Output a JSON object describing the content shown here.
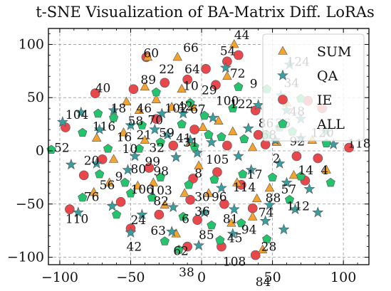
{
  "chart_data": {
    "type": "scatter",
    "title": "t-SNE Visualization of BA-Matrix Diff. LoRAs",
    "xlabel": "",
    "ylabel": "",
    "xlim": [
      -108,
      118
    ],
    "ylim": [
      -107,
      115
    ],
    "xticks": [
      -100,
      -50,
      0,
      50,
      100
    ],
    "yticks": [
      -100,
      -50,
      0,
      50,
      100
    ],
    "grid": true,
    "legend_position": "top-right",
    "series": [
      {
        "name": "SUM",
        "marker": "triangle",
        "color": "#f4a32c",
        "points": [
          [
            23,
            100
          ],
          [
            -38,
            88
          ],
          [
            -17,
            88
          ],
          [
            -40,
            60
          ],
          [
            -53,
            46
          ],
          [
            -32,
            48
          ],
          [
            -44,
            38
          ],
          [
            -14,
            58
          ],
          [
            -21,
            41
          ],
          [
            -6,
            41
          ],
          [
            18,
            70
          ],
          [
            1,
            22
          ],
          [
            -8,
            8
          ],
          [
            -40,
            10
          ],
          [
            -62,
            -8
          ],
          [
            -55,
            17
          ],
          [
            -74,
            12
          ],
          [
            -34,
            -30
          ],
          [
            -65,
            -30
          ],
          [
            -76,
            -39
          ],
          [
            -45,
            -33
          ],
          [
            -26,
            -51
          ],
          [
            21,
            -68
          ],
          [
            36,
            -62
          ],
          [
            43,
            -93
          ],
          [
            22,
            18
          ],
          [
            36,
            3
          ],
          [
            53,
            8
          ],
          [
            48,
            -35
          ],
          [
            39,
            -45
          ],
          [
            5,
            -40
          ],
          [
            -18,
            -78
          ],
          [
            65,
            -23
          ],
          [
            78,
            10
          ],
          [
            88,
            -18
          ],
          [
            12,
            28
          ],
          [
            -2,
            -14
          ],
          [
            25,
            -30
          ],
          [
            -12,
            -40
          ],
          [
            60,
            45
          ]
        ]
      },
      {
        "name": "QA",
        "marker": "star",
        "color": "#3a9e9e",
        "points": [
          [
            -98,
            27
          ],
          [
            -85,
            36
          ],
          [
            -62,
            38
          ],
          [
            -28,
            35
          ],
          [
            -13,
            35
          ],
          [
            8,
            31
          ],
          [
            40,
            43
          ],
          [
            56,
            52
          ],
          [
            62,
            81
          ],
          [
            60,
            38
          ],
          [
            70,
            30
          ],
          [
            88,
            18
          ],
          [
            -72,
            20
          ],
          [
            -50,
            24
          ],
          [
            -33,
            20
          ],
          [
            -8,
            10
          ],
          [
            7,
            8
          ],
          [
            33,
            21
          ],
          [
            52,
            10
          ],
          [
            70,
            12
          ],
          [
            93,
            6
          ],
          [
            -92,
            -13
          ],
          [
            -74,
            -12
          ],
          [
            -52,
            -18
          ],
          [
            -18,
            -6
          ],
          [
            -3,
            -2
          ],
          [
            26,
            -5
          ],
          [
            55,
            -12
          ],
          [
            60,
            -30
          ],
          [
            76,
            -36
          ],
          [
            -87,
            -58
          ],
          [
            -63,
            -52
          ],
          [
            -42,
            -60
          ],
          [
            -20,
            -53
          ],
          [
            2,
            -58
          ],
          [
            23,
            -55
          ],
          [
            48,
            -51
          ],
          [
            66,
            -55
          ],
          [
            82,
            -58
          ],
          [
            -50,
            -77
          ],
          [
            -21,
            -76
          ],
          [
            -2,
            -89
          ],
          [
            22,
            -78
          ],
          [
            45,
            -66
          ],
          [
            58,
            -74
          ],
          [
            17,
            78
          ],
          [
            -24,
            15
          ],
          [
            -47,
            -5
          ],
          [
            14,
            -35
          ],
          [
            35,
            -18
          ]
        ]
      },
      {
        "name": "IE",
        "marker": "circle",
        "color": "#e8474c",
        "points": [
          [
            -39,
            88
          ],
          [
            18,
            84
          ],
          [
            -26,
            64
          ],
          [
            3,
            77
          ],
          [
            26,
            90
          ],
          [
            -75,
            54
          ],
          [
            10,
            62
          ],
          [
            -93,
            -55
          ],
          [
            -96,
            22
          ],
          [
            -48,
            58
          ],
          [
            -32,
            30
          ],
          [
            -10,
            67
          ],
          [
            38,
            38
          ],
          [
            75,
            47
          ],
          [
            85,
            40
          ],
          [
            40,
            15
          ],
          [
            18,
            5
          ],
          [
            -5,
            20
          ],
          [
            -83,
            -23
          ],
          [
            -70,
            -8
          ],
          [
            -57,
            -48
          ],
          [
            -50,
            -73
          ],
          [
            -30,
            -60
          ],
          [
            -8,
            -46
          ],
          [
            -3,
            -65
          ],
          [
            16,
            -50
          ],
          [
            36,
            -54
          ],
          [
            38,
            -98
          ],
          [
            14,
            -90
          ],
          [
            -10,
            -90
          ],
          [
            28,
            -32
          ],
          [
            45,
            6
          ],
          [
            67,
            -5
          ],
          [
            82,
            -7
          ],
          [
            104,
            3
          ],
          [
            73,
            -28
          ],
          [
            -20,
            5
          ],
          [
            -37,
            -16
          ],
          [
            -6,
            -26
          ],
          [
            11,
            -20
          ]
        ]
      },
      {
        "name": "ALL",
        "marker": "pentagon",
        "color": "#24c36e",
        "points": [
          [
            -84,
            17
          ],
          [
            -73,
            35
          ],
          [
            -62,
            31
          ],
          [
            -42,
            24
          ],
          [
            -14,
            25
          ],
          [
            2,
            33
          ],
          [
            22,
            40
          ],
          [
            46,
            58
          ],
          [
            70,
            49
          ],
          [
            55,
            22
          ],
          [
            -66,
            2
          ],
          [
            -44,
            2
          ],
          [
            -29,
            8
          ],
          [
            -5,
            4
          ],
          [
            14,
            13
          ],
          [
            30,
            11
          ],
          [
            46,
            15
          ],
          [
            64,
            18
          ],
          [
            88,
            7
          ],
          [
            -106,
            1
          ],
          [
            -72,
            -22
          ],
          [
            -54,
            -30
          ],
          [
            -29,
            -25
          ],
          [
            -9,
            -32
          ],
          [
            9,
            -27
          ],
          [
            29,
            -22
          ],
          [
            50,
            -25
          ],
          [
            70,
            -24
          ],
          [
            91,
            -30
          ],
          [
            -84,
            -44
          ],
          [
            -60,
            -60
          ],
          [
            -35,
            -44
          ],
          [
            -13,
            -62
          ],
          [
            7,
            -70
          ],
          [
            28,
            -68
          ],
          [
            62,
            -46
          ],
          [
            -26,
            -85
          ],
          [
            -16,
            -93
          ],
          [
            13,
            -84
          ],
          [
            46,
            -83
          ],
          [
            -32,
            55
          ],
          [
            26,
            60
          ],
          [
            -8,
            45
          ],
          [
            5,
            15
          ],
          [
            -50,
            -40
          ]
        ]
      }
    ],
    "annotations": [
      {
        "text": "44",
        "x": 23,
        "y": 105
      },
      {
        "text": "60",
        "x": -41,
        "y": 88
      },
      {
        "text": "66",
        "x": -13,
        "y": 93
      },
      {
        "text": "54",
        "x": 13,
        "y": 90
      },
      {
        "text": "124",
        "x": 60,
        "y": 80
      },
      {
        "text": "89",
        "x": -43,
        "y": 63
      },
      {
        "text": "22",
        "x": -30,
        "y": 73
      },
      {
        "text": "64",
        "x": -12,
        "y": 73
      },
      {
        "text": "72",
        "x": 20,
        "y": 69
      },
      {
        "text": "34",
        "x": 58,
        "y": 60
      },
      {
        "text": "40",
        "x": -75,
        "y": 55
      },
      {
        "text": "10",
        "x": -13,
        "y": 57
      },
      {
        "text": "29",
        "x": 0,
        "y": 53
      },
      {
        "text": "9",
        "x": 34,
        "y": 59
      },
      {
        "text": "104",
        "x": -96,
        "y": 30
      },
      {
        "text": "18",
        "x": -64,
        "y": 36
      },
      {
        "text": "46",
        "x": -46,
        "y": 36
      },
      {
        "text": "100",
        "x": 10,
        "y": 43
      },
      {
        "text": "122",
        "x": 20,
        "y": 40
      },
      {
        "text": "58",
        "x": -52,
        "y": 24
      },
      {
        "text": "102",
        "x": -26,
        "y": 36
      },
      {
        "text": "42",
        "x": -17,
        "y": 38
      },
      {
        "text": "48",
        "x": 62,
        "y": 33
      },
      {
        "text": "116",
        "x": -77,
        "y": 19
      },
      {
        "text": "70",
        "x": -38,
        "y": 25
      },
      {
        "text": "67",
        "x": -8,
        "y": 35
      },
      {
        "text": "86",
        "x": 40,
        "y": 22
      },
      {
        "text": "26",
        "x": 52,
        "y": 22
      },
      {
        "text": "120",
        "x": 77,
        "y": 13
      },
      {
        "text": "16",
        "x": -60,
        "y": 9
      },
      {
        "text": "21",
        "x": -46,
        "y": 11
      },
      {
        "text": "59",
        "x": -30,
        "y": 13
      },
      {
        "text": "68",
        "x": 42,
        "y": 11
      },
      {
        "text": "118",
        "x": 103,
        "y": 3
      },
      {
        "text": "52",
        "x": -104,
        "y": -1
      },
      {
        "text": "32",
        "x": -37,
        "y": -1
      },
      {
        "text": "41",
        "x": -18,
        "y": 8
      },
      {
        "text": "31",
        "x": -13,
        "y": 4
      },
      {
        "text": "92",
        "x": 62,
        "y": 5
      },
      {
        "text": "20",
        "x": -83,
        "y": -13
      },
      {
        "text": "10",
        "x": -56,
        "y": -2
      },
      {
        "text": "105",
        "x": 3,
        "y": -12
      },
      {
        "text": "2",
        "x": 50,
        "y": -11
      },
      {
        "text": "80",
        "x": -50,
        "y": -21
      },
      {
        "text": "99",
        "x": -40,
        "y": -14
      },
      {
        "text": "98",
        "x": -34,
        "y": -23
      },
      {
        "text": "14",
        "x": 68,
        "y": -22
      },
      {
        "text": "9",
        "x": -61,
        "y": -28
      },
      {
        "text": "17",
        "x": 32,
        "y": -26
      },
      {
        "text": "8",
        "x": -5,
        "y": -25
      },
      {
        "text": "4",
        "x": 84,
        "y": -22
      },
      {
        "text": "56",
        "x": -72,
        "y": -36
      },
      {
        "text": "106",
        "x": -50,
        "y": -40
      },
      {
        "text": "103",
        "x": -37,
        "y": -41
      },
      {
        "text": "114",
        "x": 22,
        "y": -38
      },
      {
        "text": "57",
        "x": 56,
        "y": -40
      },
      {
        "text": "76",
        "x": -83,
        "y": -47
      },
      {
        "text": "82",
        "x": -34,
        "y": -51
      },
      {
        "text": "30",
        "x": -5,
        "y": -47
      },
      {
        "text": "96",
        "x": 7,
        "y": -47
      },
      {
        "text": "88",
        "x": 45,
        "y": -48
      },
      {
        "text": "112",
        "x": 60,
        "y": -56
      },
      {
        "text": "36",
        "x": -5,
        "y": -61
      },
      {
        "text": "110",
        "x": -96,
        "y": -68
      },
      {
        "text": "24",
        "x": -50,
        "y": -69
      },
      {
        "text": "6",
        "x": -14,
        "y": -68
      },
      {
        "text": "81",
        "x": 15,
        "y": -68
      },
      {
        "text": "74",
        "x": 40,
        "y": -62
      },
      {
        "text": "63",
        "x": -36,
        "y": -79
      },
      {
        "text": "85",
        "x": -2,
        "y": -83
      },
      {
        "text": "45",
        "x": 18,
        "y": -86
      },
      {
        "text": "94",
        "x": 28,
        "y": -78
      },
      {
        "text": "42",
        "x": -53,
        "y": -94
      },
      {
        "text": "62",
        "x": -20,
        "y": -98
      },
      {
        "text": "28",
        "x": 42,
        "y": -94
      },
      {
        "text": "108",
        "x": 15,
        "y": -108
      },
      {
        "text": "38",
        "x": -16,
        "y": -118
      },
      {
        "text": "84",
        "x": 38,
        "y": -127
      }
    ]
  }
}
